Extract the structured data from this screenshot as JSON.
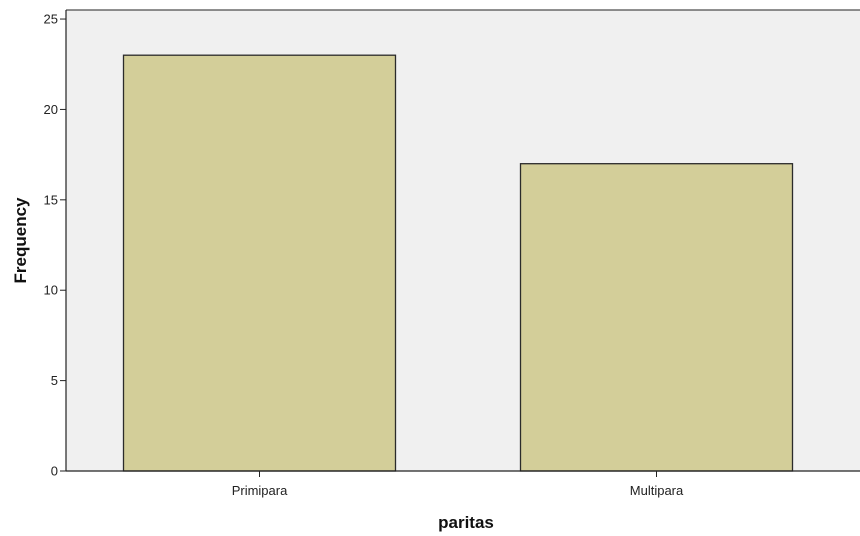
{
  "chart_data": {
    "type": "bar",
    "title": "",
    "xlabel": "paritas",
    "ylabel": "Frequency",
    "categories": [
      "Primipara",
      "Multipara"
    ],
    "values": [
      23,
      17
    ],
    "ylim": [
      0,
      25.5
    ],
    "yticks": [
      0,
      5,
      10,
      15,
      20,
      25
    ],
    "grid": false,
    "legend": "none",
    "colors": {
      "plot_background": "#f0f0f0",
      "bar_fill": "#d3ce99",
      "bar_stroke": "#2b2b2b",
      "axis": "#222222"
    }
  }
}
